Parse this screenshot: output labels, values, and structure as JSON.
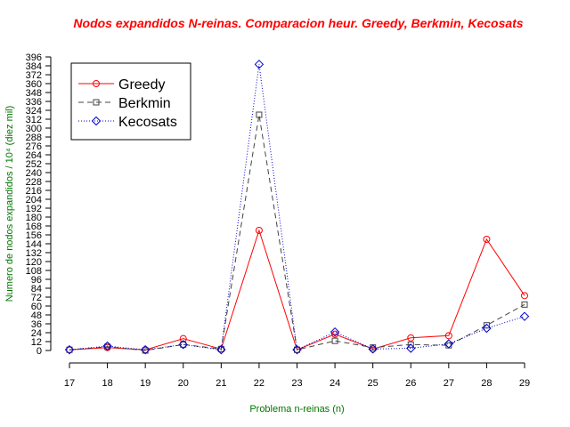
{
  "chart_data": {
    "type": "line",
    "title": "Nodos expandidos N-reinas. Comparacion heur. Greedy, Berkmin, Kecosats",
    "xlabel": "Problema n-reinas (n)",
    "ylabel": "Numero de nodos expandidos / 10⁴ (diez mil)",
    "x": [
      17,
      18,
      19,
      20,
      21,
      22,
      23,
      24,
      25,
      26,
      27,
      28,
      29
    ],
    "xlim": [
      17,
      29
    ],
    "ylim": [
      0,
      396
    ],
    "ytick_step": 12,
    "legend_position": "top-left",
    "series": [
      {
        "name": "Greedy",
        "color": "#ff0000",
        "marker": "circle",
        "dash": "",
        "values": [
          1,
          4,
          1,
          16,
          2,
          162,
          1,
          22,
          2,
          17,
          20,
          150,
          74
        ]
      },
      {
        "name": "Berkmin",
        "color": "#444444",
        "marker": "square",
        "dash": "6,4",
        "values": [
          1,
          5,
          0,
          8,
          2,
          318,
          1,
          13,
          4,
          8,
          7,
          34,
          62
        ]
      },
      {
        "name": "Kecosats",
        "color": "#0000cc",
        "marker": "diamond",
        "dash": "1,2",
        "values": [
          1,
          6,
          1,
          8,
          1,
          386,
          1,
          25,
          2,
          3,
          9,
          30,
          46
        ]
      }
    ]
  }
}
